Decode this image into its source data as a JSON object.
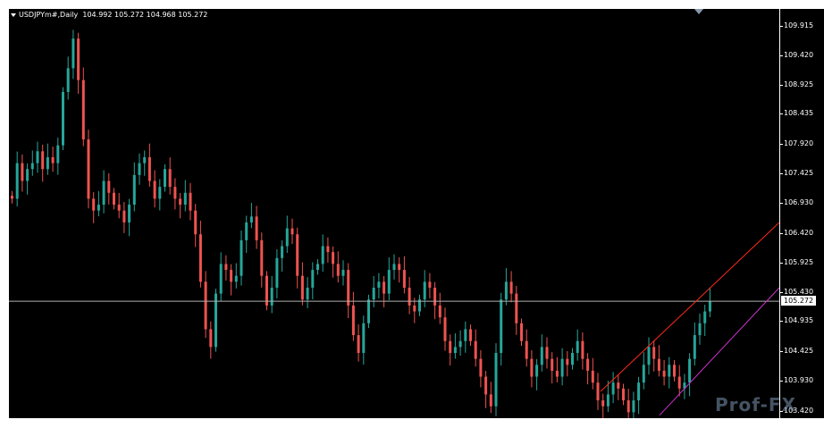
{
  "header": {
    "symbol": "USDJPYm#,Daily",
    "open": "104.992",
    "high": "105.272",
    "low": "104.968",
    "close": "105.272"
  },
  "price_scale": {
    "labels": [
      "109.915",
      "109.420",
      "108.925",
      "108.435",
      "107.920",
      "107.425",
      "106.930",
      "106.420",
      "105.925",
      "105.430",
      "104.935",
      "104.425",
      "103.930",
      "103.420"
    ],
    "current_price": "105.272"
  },
  "colors": {
    "background": "#000000",
    "bull_candle": "#26a69a",
    "bear_candle": "#ef5350",
    "trend_line_upper": "#ff2a1a",
    "trend_line_lower": "#cc33cc",
    "price_line": "#b0b0b0"
  },
  "watermark": {
    "text": "Prof-FX"
  },
  "chart_data": {
    "type": "candlestick",
    "title": "USDJPYm#,Daily",
    "xlabel": "",
    "ylabel": "",
    "ylim": [
      103.3,
      110.2
    ],
    "last_close": 105.272,
    "close_path": [
      107.0,
      107.6,
      107.3,
      107.5,
      107.6,
      107.8,
      107.5,
      107.7,
      107.6,
      107.9,
      108.8,
      109.2,
      109.7,
      109.0,
      108.0,
      107.0,
      106.8,
      106.9,
      107.3,
      107.1,
      106.9,
      106.8,
      106.6,
      106.9,
      107.4,
      107.6,
      107.7,
      107.3,
      107.0,
      107.2,
      107.5,
      107.2,
      107.0,
      106.9,
      107.1,
      106.8,
      106.4,
      105.6,
      104.8,
      104.5,
      105.4,
      105.9,
      105.8,
      105.6,
      105.7,
      106.3,
      106.6,
      106.7,
      106.3,
      105.7,
      105.2,
      105.5,
      106.0,
      106.2,
      106.5,
      106.4,
      105.7,
      105.3,
      105.5,
      105.8,
      105.9,
      106.2,
      106.1,
      105.9,
      105.7,
      105.8,
      105.2,
      104.7,
      104.4,
      104.9,
      105.3,
      105.5,
      105.6,
      105.4,
      105.8,
      105.9,
      105.8,
      105.5,
      105.2,
      105.1,
      105.3,
      105.6,
      105.5,
      105.2,
      105.0,
      104.6,
      104.4,
      104.5,
      104.6,
      104.8,
      104.6,
      104.3,
      104.0,
      103.7,
      103.5,
      104.4,
      105.3,
      105.6,
      105.4,
      104.9,
      104.6,
      104.3,
      104.0,
      104.2,
      104.5,
      104.3,
      104.1,
      104.0,
      104.3,
      104.2,
      104.4,
      104.6,
      104.3,
      104.1,
      103.9,
      103.6,
      103.5,
      103.7,
      103.9,
      103.8,
      103.6,
      103.4,
      103.6,
      103.9,
      104.2,
      104.5,
      104.3,
      104.1,
      104.0,
      104.2,
      104.0,
      103.8,
      103.9,
      104.3,
      104.7,
      104.9,
      105.1,
      105.272
    ]
  }
}
